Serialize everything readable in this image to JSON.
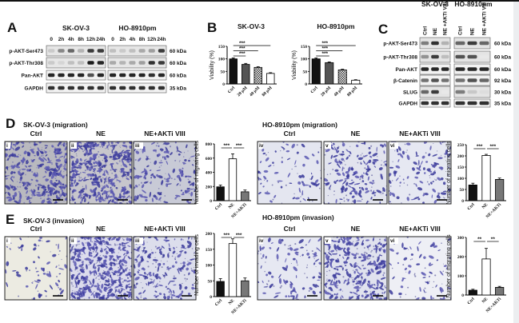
{
  "panels": {
    "A": {
      "label": "A",
      "cell_lines": [
        "SK-OV-3",
        "HO-8910pm"
      ],
      "timepoints": [
        "0",
        "2h",
        "4h",
        "8h",
        "12h",
        "24h"
      ],
      "rows": [
        {
          "name": "p-AKT-Ser473",
          "kda": "60 kDa"
        },
        {
          "name": "p-AKT-Thr308",
          "kda": "60 kDa"
        },
        {
          "name": "Pan-AKT",
          "kda": "60 kDa"
        },
        {
          "name": "GAPDH",
          "kda": "35 kDa"
        }
      ]
    },
    "B": {
      "label": "B"
    },
    "C": {
      "label": "C",
      "cell_lines": [
        "SK-OV-3",
        "HO-8910pm"
      ],
      "lanes": [
        "Ctrl",
        "NE",
        "NE +AKTi VIII"
      ],
      "rows": [
        {
          "name": "p-AKT-Ser473",
          "kda": "60 kDa"
        },
        {
          "name": "p-AKT-Thr308",
          "kda": "60 kDa"
        },
        {
          "name": "Pan-AKT",
          "kda": "60 kDa"
        },
        {
          "name": "β-Catenin",
          "kda": "92 kDa"
        },
        {
          "name": "SLUG",
          "kda": "30 kDa"
        },
        {
          "name": "GAPDH",
          "kda": "35 kDa"
        }
      ]
    },
    "D": {
      "label": "D",
      "sk_title": "SK-OV-3 (migration)",
      "ho_title": "HO-8910pm (migration)"
    },
    "E": {
      "label": "E",
      "sk_title": "SK-OV-3 (invasion)",
      "ho_title": "HO-8910pm (invasion)"
    },
    "image_columns": [
      "Ctrl",
      "NE",
      "NE+AKTi VIII"
    ],
    "image_numerals": [
      "i",
      "ii",
      "iii",
      "iv",
      "v",
      "vi"
    ]
  },
  "chart_data": [
    {
      "id": "B-sk",
      "type": "bar",
      "title": "SK-OV-3",
      "ylabel": "Viability (%)",
      "categories": [
        "Ctrl",
        "20 μM",
        "40 μM",
        "80 μM"
      ],
      "values": [
        100,
        78,
        66,
        42
      ],
      "errors": [
        4,
        4,
        3,
        3
      ],
      "ylim": [
        0,
        150
      ],
      "yticks": [
        0,
        50,
        100,
        150
      ],
      "sig": [
        {
          "from": 0,
          "to": 1,
          "label": "***"
        },
        {
          "from": 0,
          "to": 2,
          "label": "***"
        },
        {
          "from": 0,
          "to": 3,
          "label": "***"
        }
      ]
    },
    {
      "id": "B-ho",
      "type": "bar",
      "title": "HO-8910pm",
      "ylabel": "Viability (%)",
      "categories": [
        "Ctrl",
        "20 μM",
        "40 μM",
        "80 μM"
      ],
      "values": [
        100,
        85,
        56,
        15
      ],
      "errors": [
        4,
        3,
        3,
        2
      ],
      "ylim": [
        0,
        150
      ],
      "yticks": [
        0,
        50,
        100,
        150
      ],
      "sig": [
        {
          "from": 0,
          "to": 1,
          "label": "***"
        },
        {
          "from": 0,
          "to": 2,
          "label": "***"
        },
        {
          "from": 0,
          "to": 3,
          "label": "***"
        }
      ]
    },
    {
      "id": "D-sk",
      "type": "bar",
      "title": "",
      "ylabel": "Number of migrating cells",
      "categories": [
        "Ctrl",
        "NE",
        "NE+AKTi"
      ],
      "values": [
        195,
        590,
        125
      ],
      "errors": [
        25,
        70,
        25
      ],
      "ylim": [
        0,
        800
      ],
      "yticks": [
        0,
        200,
        400,
        600,
        800
      ],
      "sig": [
        {
          "from": 0,
          "to": 1,
          "label": "***"
        },
        {
          "from": 1,
          "to": 2,
          "label": "***"
        }
      ]
    },
    {
      "id": "D-ho",
      "type": "bar",
      "title": "",
      "ylabel": "Number of migrating cells",
      "categories": [
        "Ctrl",
        "NE",
        "NE+AKTi"
      ],
      "values": [
        70,
        202,
        95
      ],
      "errors": [
        8,
        5,
        6
      ],
      "ylim": [
        0,
        250
      ],
      "yticks": [
        0,
        50,
        100,
        150,
        200,
        250
      ],
      "sig": [
        {
          "from": 0,
          "to": 1,
          "label": "***"
        },
        {
          "from": 1,
          "to": 2,
          "label": "***"
        }
      ]
    },
    {
      "id": "E-sk",
      "type": "bar",
      "title": "",
      "ylabel": "Number of invading cells",
      "categories": [
        "Ctrl",
        "NE",
        "NE+AKTi"
      ],
      "values": [
        48,
        168,
        50
      ],
      "errors": [
        9,
        15,
        9
      ],
      "ylim": [
        0,
        200
      ],
      "yticks": [
        0,
        50,
        100,
        150,
        200
      ],
      "sig": [
        {
          "from": 0,
          "to": 1,
          "label": "***"
        },
        {
          "from": 1,
          "to": 2,
          "label": "***"
        }
      ]
    },
    {
      "id": "E-ho",
      "type": "bar",
      "title": "",
      "ylabel": "Number of migrating cells",
      "categories": [
        "Ctrl",
        "NE",
        "NE+AKTi"
      ],
      "values": [
        25,
        188,
        40
      ],
      "errors": [
        5,
        55,
        5
      ],
      "ylim": [
        0,
        300
      ],
      "yticks": [
        0,
        100,
        200,
        300
      ],
      "sig": [
        {
          "from": 0,
          "to": 1,
          "label": "**"
        },
        {
          "from": 1,
          "to": 2,
          "label": "**"
        }
      ]
    }
  ]
}
